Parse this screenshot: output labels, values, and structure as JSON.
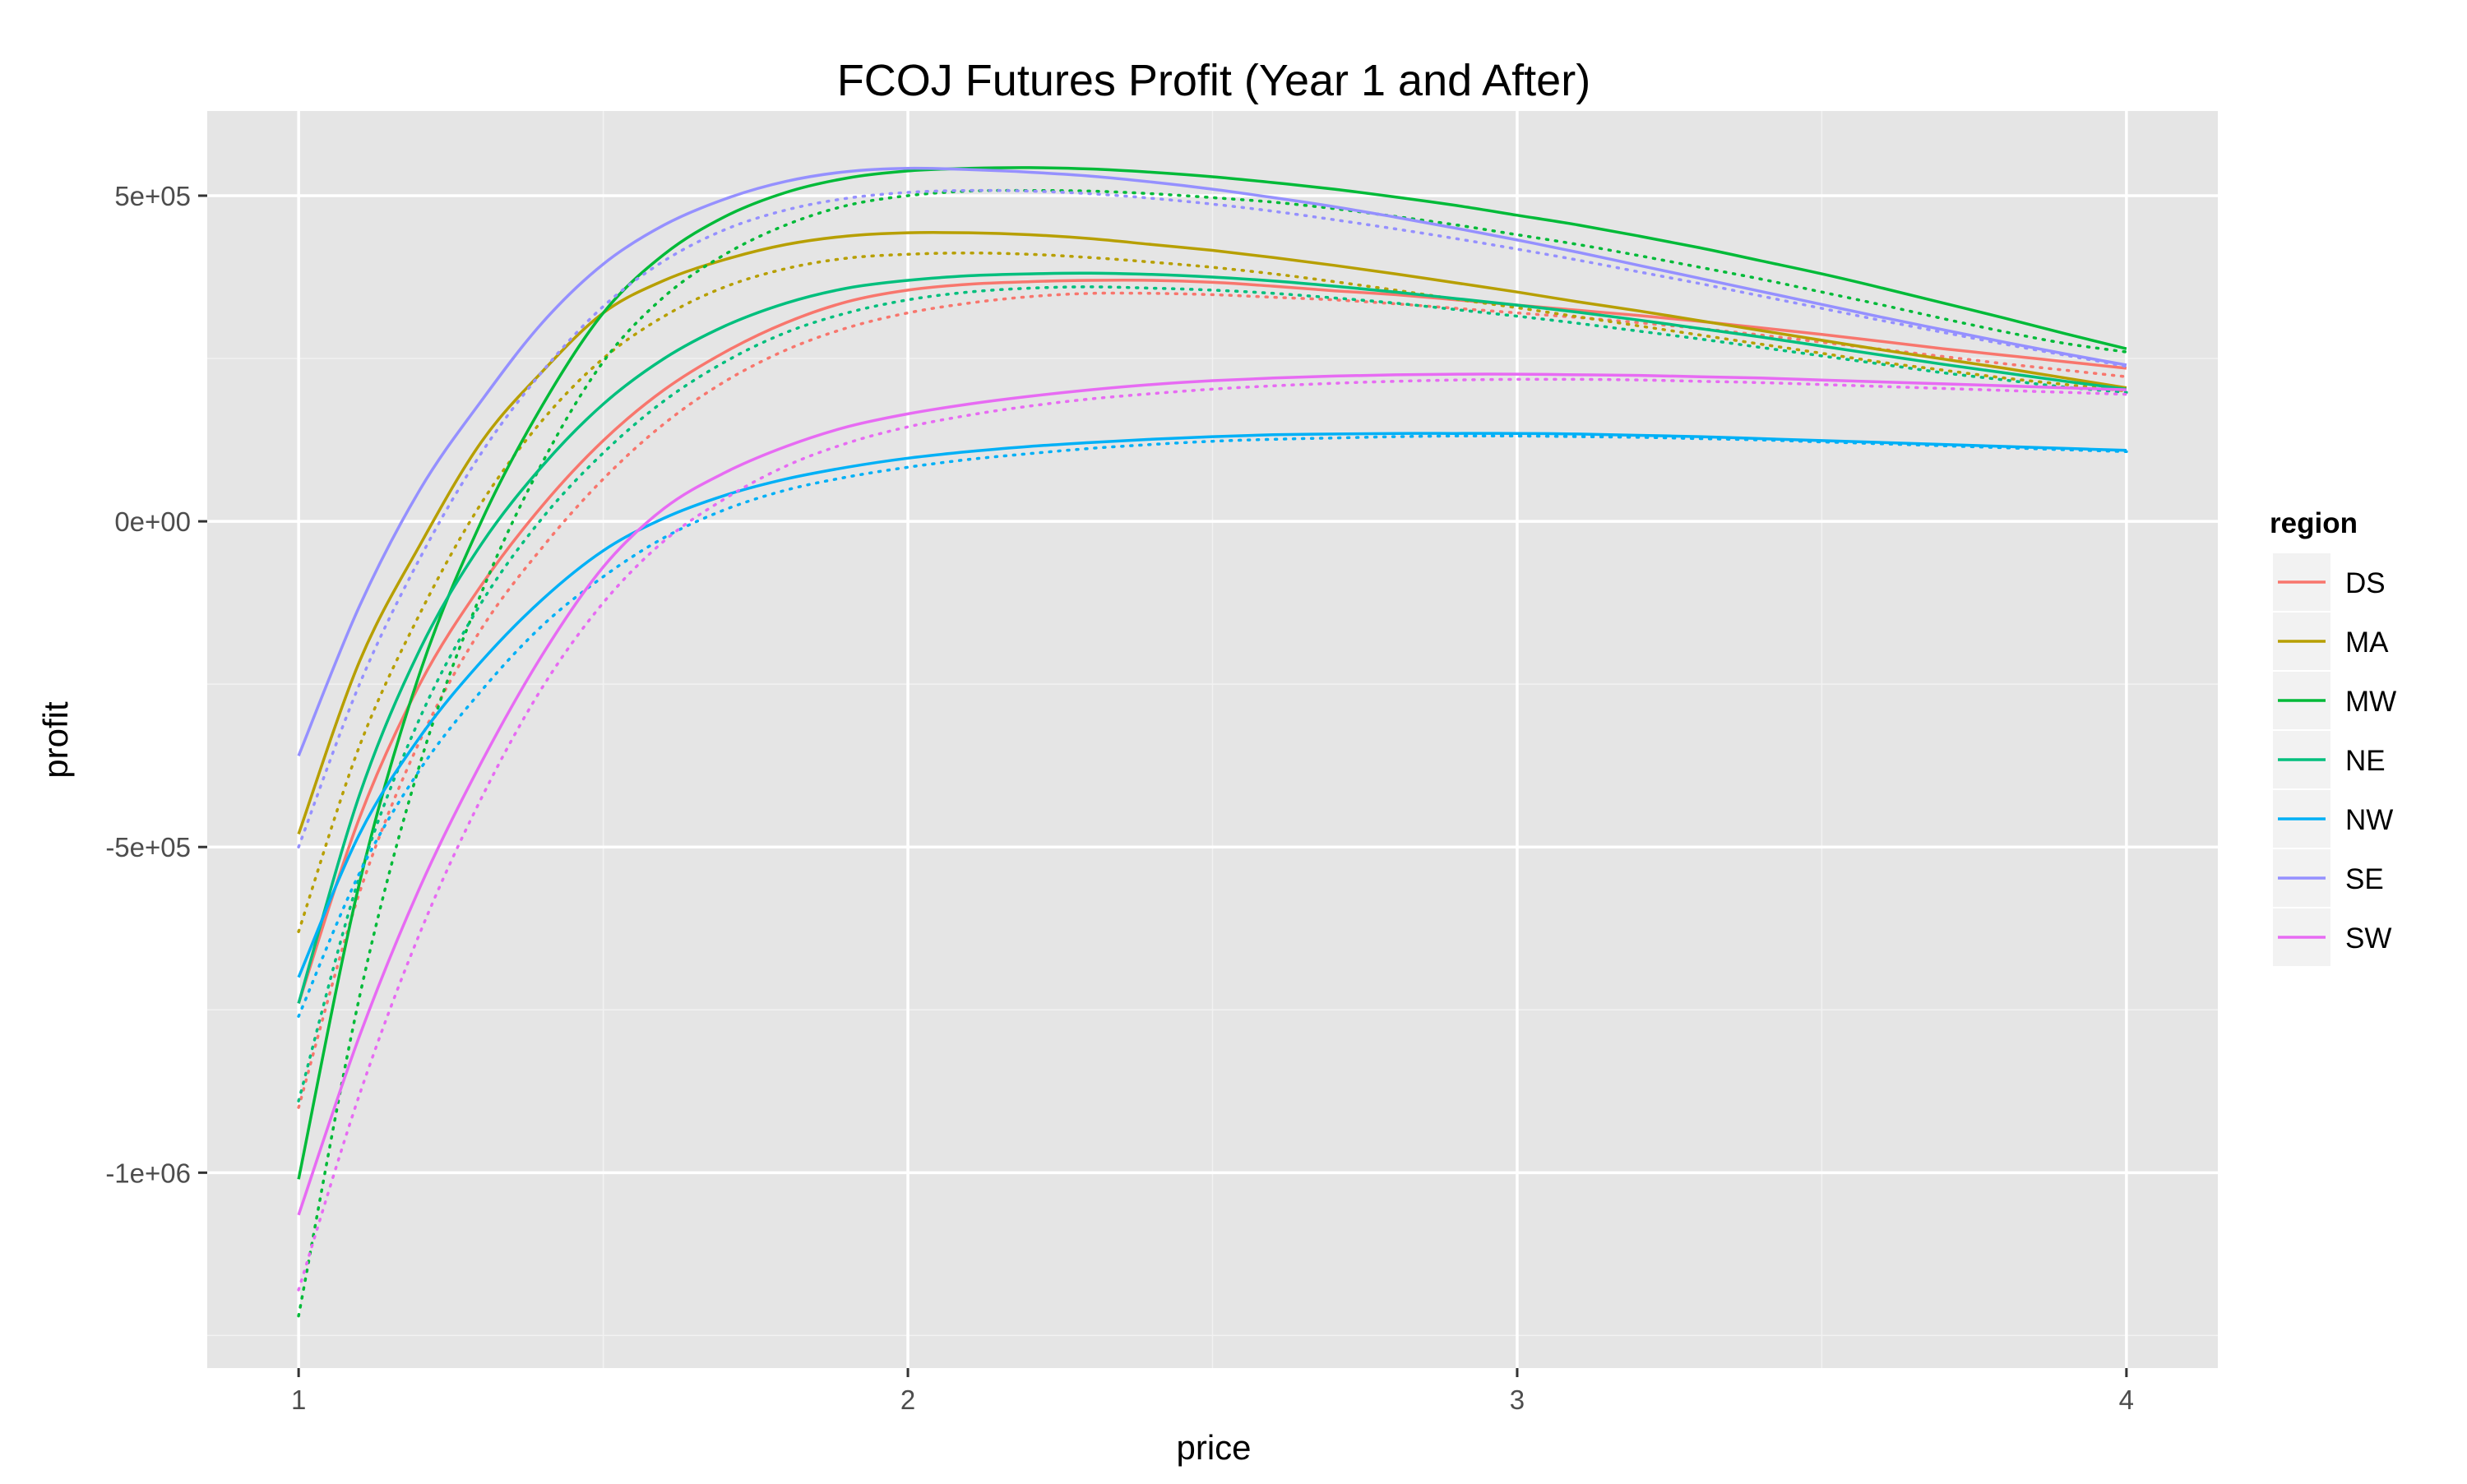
{
  "chart_data": {
    "type": "line",
    "title": "FCOJ Futures Profit (Year 1 and After)",
    "xlabel": "price",
    "ylabel": "profit",
    "xlim": [
      0.85,
      4.15
    ],
    "ylim": [
      -1300000,
      630000
    ],
    "x_ticks": [
      1,
      2,
      3,
      4
    ],
    "x_tick_labels": [
      "1",
      "2",
      "3",
      "4"
    ],
    "y_ticks": [
      500000,
      0,
      -500000,
      -1000000
    ],
    "y_tick_labels": [
      "5e+05",
      "0e+00",
      "-5e+05",
      "-1e+06"
    ],
    "grid": true,
    "legend": {
      "title": "region",
      "position": "right"
    },
    "line_styles": [
      "solid",
      "dotted"
    ],
    "x": [
      1.0,
      1.1,
      1.2,
      1.3,
      1.4,
      1.5,
      1.6,
      1.7,
      1.8,
      1.9,
      2.0,
      2.1,
      2.2,
      2.3,
      2.4,
      2.5,
      2.6,
      2.7,
      2.8,
      2.9,
      3.0,
      3.1,
      3.2,
      3.3,
      3.4,
      3.5,
      3.6,
      3.7,
      3.8,
      3.9,
      4.0
    ],
    "series": [
      {
        "name": "DS",
        "color": "#F8766D",
        "style": "solid",
        "values": [
          -740000,
          -455000,
          -248000,
          -98000,
          24000,
          124000,
          202000,
          260000,
          305000,
          337000,
          355000,
          364000,
          368000,
          370000,
          370000,
          367000,
          361000,
          354000,
          348000,
          340000,
          332000,
          324000,
          316000,
          307000,
          297000,
          287000,
          276000,
          265000,
          255000,
          245000,
          235000
        ]
      },
      {
        "name": "DS",
        "color": "#F8766D",
        "style": "dotted",
        "values": [
          -900000,
          -570000,
          -335000,
          -165000,
          -40000,
          65000,
          150000,
          215000,
          263000,
          297000,
          320000,
          335000,
          345000,
          350000,
          350000,
          348000,
          344000,
          340000,
          334000,
          327000,
          320000,
          313000,
          305000,
          296000,
          286000,
          275000,
          264000,
          253000,
          242000,
          232000,
          222000
        ]
      },
      {
        "name": "MA",
        "color": "#B79F00",
        "style": "solid",
        "values": [
          -480000,
          -215000,
          -35000,
          122000,
          230000,
          320000,
          370000,
          402000,
          425000,
          438000,
          443000,
          443000,
          440000,
          434000,
          425000,
          416000,
          405000,
          393000,
          380000,
          366000,
          352000,
          337000,
          323000,
          308000,
          293000,
          278000,
          263000,
          249000,
          235000,
          220000,
          205000
        ]
      },
      {
        "name": "MA",
        "color": "#B79F00",
        "style": "dotted",
        "values": [
          -630000,
          -345000,
          -140000,
          28000,
          155000,
          250000,
          315000,
          360000,
          388000,
          404000,
          410000,
          412000,
          410000,
          405000,
          398000,
          390000,
          380000,
          368000,
          355000,
          341000,
          328000,
          314000,
          300000,
          286000,
          272000,
          258000,
          244000,
          232000,
          220000,
          210000,
          200000
        ]
      },
      {
        "name": "MW",
        "color": "#00BA38",
        "style": "solid",
        "values": [
          -1010000,
          -555000,
          -230000,
          0,
          178000,
          320000,
          410000,
          468000,
          505000,
          527000,
          538000,
          542000,
          543000,
          541000,
          536000,
          529000,
          520000,
          510000,
          498000,
          485000,
          470000,
          455000,
          438000,
          420000,
          400000,
          380000,
          358000,
          335000,
          312000,
          288000,
          265000
        ]
      },
      {
        "name": "MW",
        "color": "#00BA38",
        "style": "dotted",
        "values": [
          -1220000,
          -730000,
          -370000,
          -110000,
          90000,
          245000,
          345000,
          410000,
          455000,
          485000,
          500000,
          507000,
          508000,
          507000,
          503000,
          497000,
          490000,
          480000,
          468000,
          455000,
          440000,
          425000,
          408000,
          390000,
          372000,
          352000,
          332000,
          311000,
          291000,
          273000,
          260000
        ]
      },
      {
        "name": "NE",
        "color": "#00BF7D",
        "style": "solid",
        "values": [
          -740000,
          -420000,
          -195000,
          -35000,
          85000,
          180000,
          250000,
          300000,
          335000,
          358000,
          370000,
          377000,
          380000,
          381000,
          379000,
          375000,
          369000,
          361000,
          352000,
          342000,
          332000,
          321000,
          309000,
          296000,
          283000,
          269000,
          255000,
          241000,
          228000,
          215000,
          203000
        ]
      },
      {
        "name": "NE",
        "color": "#00BF7D",
        "style": "dotted",
        "values": [
          -890000,
          -545000,
          -300000,
          -125000,
          5000,
          105000,
          185000,
          245000,
          290000,
          320000,
          340000,
          352000,
          358000,
          360000,
          358000,
          355000,
          350000,
          343000,
          335000,
          325000,
          315000,
          304000,
          292000,
          280000,
          267000,
          254000,
          241000,
          228000,
          217000,
          206000,
          198000
        ]
      },
      {
        "name": "NW",
        "color": "#00B0F6",
        "style": "solid",
        "values": [
          -700000,
          -480000,
          -330000,
          -215000,
          -120000,
          -45000,
          5000,
          40000,
          65000,
          83000,
          97000,
          107000,
          115000,
          121000,
          126000,
          130000,
          133000,
          134000,
          135000,
          135000,
          135000,
          134000,
          132000,
          130000,
          127000,
          124000,
          121000,
          118000,
          115000,
          112000,
          109000
        ]
      },
      {
        "name": "NW",
        "color": "#00B0F6",
        "style": "dotted",
        "values": [
          -760000,
          -540000,
          -380000,
          -260000,
          -160000,
          -85000,
          -25000,
          18000,
          48000,
          68000,
          83000,
          95000,
          104000,
          112000,
          118000,
          123000,
          126000,
          128000,
          130000,
          131000,
          131000,
          130000,
          129000,
          127000,
          125000,
          122000,
          119000,
          116000,
          113000,
          110000,
          107000
        ]
      },
      {
        "name": "SE",
        "color": "#9590FF",
        "style": "solid",
        "values": [
          -360000,
          -130000,
          50000,
          185000,
          305000,
          395000,
          455000,
          495000,
          522000,
          537000,
          542000,
          540000,
          536000,
          530000,
          521000,
          510000,
          497000,
          483000,
          467000,
          450000,
          432000,
          413000,
          393000,
          373000,
          353000,
          333000,
          313000,
          294000,
          275000,
          257000,
          240000
        ]
      },
      {
        "name": "SE",
        "color": "#9590FF",
        "style": "dotted",
        "values": [
          -500000,
          -250000,
          -55000,
          105000,
          230000,
          330000,
          400000,
          448000,
          478000,
          496000,
          505000,
          508000,
          507000,
          503000,
          496000,
          487000,
          476000,
          463000,
          449000,
          434000,
          418000,
          401000,
          383000,
          365000,
          346000,
          327000,
          308000,
          290000,
          272000,
          255000,
          238000
        ]
      },
      {
        "name": "SW",
        "color": "#E76BF3",
        "style": "solid",
        "values": [
          -1065000,
          -790000,
          -560000,
          -370000,
          -205000,
          -70000,
          20000,
          75000,
          115000,
          145000,
          165000,
          180000,
          192000,
          202000,
          210000,
          216000,
          220000,
          223000,
          225000,
          226000,
          226000,
          225000,
          224000,
          222000,
          220000,
          217000,
          214000,
          211000,
          208000,
          205000,
          202000
        ]
      },
      {
        "name": "SW",
        "color": "#E76BF3",
        "style": "dotted",
        "values": [
          -1180000,
          -880000,
          -630000,
          -425000,
          -255000,
          -125000,
          -30000,
          35000,
          85000,
          120000,
          145000,
          163000,
          177000,
          188000,
          196000,
          203000,
          208000,
          212000,
          215000,
          217000,
          218000,
          218000,
          217000,
          215000,
          213000,
          210000,
          207000,
          204000,
          201000,
          198000,
          195000
        ]
      }
    ]
  }
}
